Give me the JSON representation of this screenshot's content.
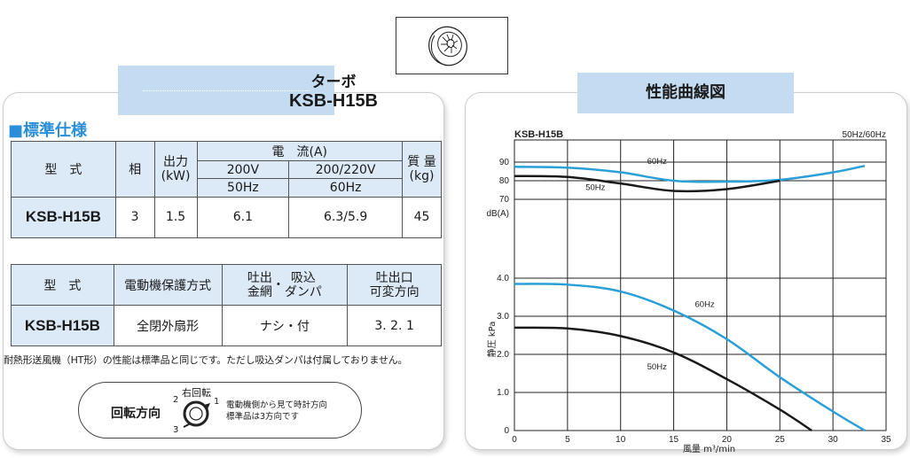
{
  "thumbnail": {
    "icon": "turbo-fan-icon"
  },
  "left_panel": {
    "tab_line1": "ターボ",
    "tab_line2": "KSB-H15B",
    "section_title": "■標準仕様",
    "spec_table": {
      "col_model": "型　式",
      "col_phase": "相",
      "col_output_1": "出力",
      "col_output_2": "(kW)",
      "col_current": "電　流(A)",
      "col_v1": "200V",
      "col_v2": "200/220V",
      "col_hz1": "50Hz",
      "col_hz2": "60Hz",
      "col_mass_1": "質 量",
      "col_mass_2": "(kg)",
      "row": {
        "model": "KSB-H15B",
        "phase": "3",
        "output": "1.5",
        "current_50": "6.1",
        "current_60": "6.3/5.9",
        "mass": "45"
      }
    },
    "spec_table2": {
      "col_model": "型　式",
      "col_protection": "電動機保護方式",
      "col_outlet_a": "吐出",
      "col_outlet_b": "金網",
      "col_dot": "・",
      "col_outlet_c": "吸込",
      "col_outlet_d": "ダンパ",
      "col_direction_1": "吐出口",
      "col_direction_2": "可変方向",
      "row": {
        "model": "KSB-H15B",
        "protection": "全閉外扇形",
        "outlet": "ナシ・付",
        "direction": "3. 2. 1"
      }
    },
    "note": "耐熱形送風機（HT形）の性能は標準品と同じです。ただし吸込ダンパは付属しておりません。",
    "rotation": {
      "label": "回転方向",
      "title": "右回転",
      "n1": "1",
      "n2": "2",
      "n3": "3",
      "desc1": "電動機側から見て時計方向",
      "desc2": "標準品は3方向です"
    }
  },
  "right_panel": {
    "tab": "性能曲線図"
  },
  "chart_data": {
    "type": "line",
    "title": "KSB-H15B",
    "subtitle": "50Hz/60Hz",
    "xlabel": "風量 m³/min",
    "xlim": [
      0,
      35
    ],
    "x_ticks": [
      "0",
      "5",
      "10",
      "15",
      "20",
      "25",
      "30",
      "35"
    ],
    "grid": true,
    "colors": {
      "hz50": "#1a1a1a",
      "hz60": "#2a9fd8"
    },
    "noise": {
      "ylabel": "dB(A)",
      "ylim": [
        70,
        90
      ],
      "y_ticks": [
        "70",
        "80",
        "90"
      ],
      "series": [
        {
          "name": "60Hz",
          "x": [
            0,
            5,
            10,
            15,
            20,
            25,
            30,
            33
          ],
          "y": [
            87.5,
            87,
            84.5,
            80,
            79.5,
            80.5,
            84.5,
            88
          ]
        },
        {
          "name": "50Hz",
          "x": [
            0,
            5,
            10,
            15,
            20,
            25
          ],
          "y": [
            82.5,
            82,
            78.5,
            74.5,
            75.5,
            80
          ]
        }
      ]
    },
    "pressure": {
      "ylabel": "静圧 kPa",
      "ylim": [
        0,
        4.0
      ],
      "y_ticks": [
        "0",
        "1.0",
        "2.0",
        "3.0",
        "4.0"
      ],
      "series": [
        {
          "name": "60Hz",
          "x": [
            0,
            5,
            10,
            15,
            20,
            25,
            30,
            33
          ],
          "y": [
            3.85,
            3.83,
            3.65,
            3.15,
            2.4,
            1.4,
            0.5,
            0
          ]
        },
        {
          "name": "50Hz",
          "x": [
            0,
            5,
            10,
            15,
            20,
            25,
            28
          ],
          "y": [
            2.7,
            2.68,
            2.48,
            2.05,
            1.35,
            0.55,
            0
          ]
        }
      ]
    }
  }
}
